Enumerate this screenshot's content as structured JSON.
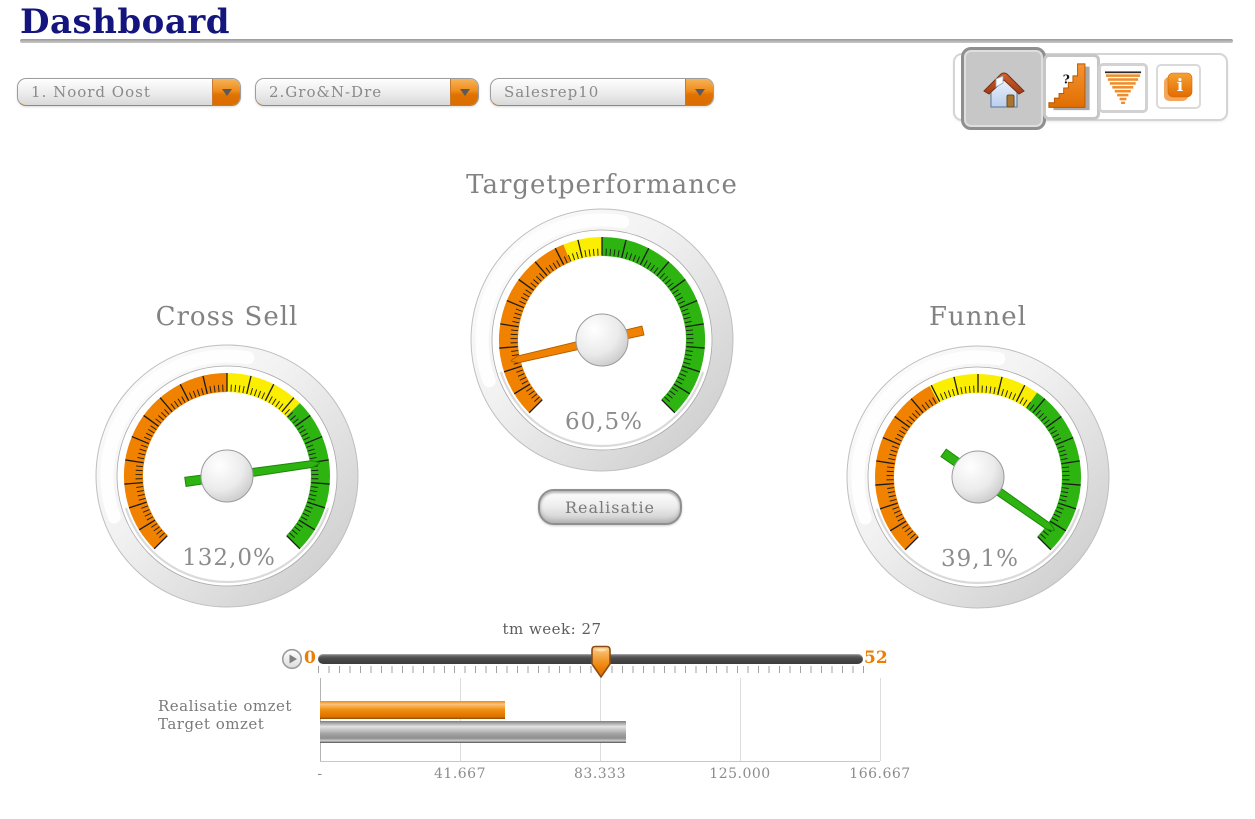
{
  "page_title": "Dashboard",
  "filters": [
    {
      "label": "1. Noord Oost"
    },
    {
      "label": "2.Gro&N-Dre"
    },
    {
      "label": "Salesrep10"
    }
  ],
  "toolbar": {
    "buttons": [
      {
        "icon": "home-icon",
        "selected": true
      },
      {
        "icon": "growth-chart-icon",
        "selected": false,
        "badge": "?"
      },
      {
        "icon": "funnel-icon",
        "selected": false
      },
      {
        "icon": "info-icon",
        "selected": false,
        "glyph": "i"
      }
    ]
  },
  "realisatie_button_label": "Realisatie",
  "slider": {
    "label": "tm week: 27",
    "min_label": "0",
    "max_label": "52",
    "min": 0,
    "max": 52,
    "value": 27,
    "accent_color": "#ef7d00"
  },
  "chart_data": [
    {
      "type": "gauge",
      "title": "Cross Sell",
      "value_label": "132,0%",
      "value_pct": 132.0,
      "segments": [
        {
          "from_deg": 225,
          "to_deg": 90,
          "color": "#f08200"
        },
        {
          "from_deg": 90,
          "to_deg": 45,
          "color": "#fcee00"
        },
        {
          "from_deg": 45,
          "to_deg": -45,
          "color": "#2db411"
        }
      ],
      "needle_angle_deg": 8,
      "needle_color": "#2db411",
      "needle_edge": "#1d860a"
    },
    {
      "type": "gauge",
      "title": "Targetperformance",
      "value_label": "60,5%",
      "value_pct": 60.5,
      "segments": [
        {
          "from_deg": 225,
          "to_deg": 112,
          "color": "#f08200"
        },
        {
          "from_deg": 112,
          "to_deg": 90,
          "color": "#fcee00"
        },
        {
          "from_deg": 90,
          "to_deg": -45,
          "color": "#2db411"
        }
      ],
      "needle_angle_deg": 193,
      "needle_color": "#f08200",
      "needle_edge": "#b55f00"
    },
    {
      "type": "gauge",
      "title": "Funnel",
      "value_label": "39,1%",
      "value_pct": 39.1,
      "segments": [
        {
          "from_deg": 225,
          "to_deg": 118,
          "color": "#f08200"
        },
        {
          "from_deg": 118,
          "to_deg": 55,
          "color": "#fcee00"
        },
        {
          "from_deg": 55,
          "to_deg": -45,
          "color": "#2db411"
        }
      ],
      "needle_angle_deg": -35,
      "needle_color": "#2db411",
      "needle_edge": "#1d860a"
    },
    {
      "type": "bar",
      "orientation": "horizontal",
      "categories": [
        "Realisatie omzet",
        "Target omzet"
      ],
      "values": [
        55000,
        91000
      ],
      "bar_colors": [
        "#ee8200",
        "#9e9e9e"
      ],
      "xlim": [
        0,
        166667
      ],
      "xtick_labels": [
        "-",
        "41.667",
        "83.333",
        "125.000",
        "166.667"
      ],
      "grid": "vertical",
      "legend": "none"
    }
  ]
}
